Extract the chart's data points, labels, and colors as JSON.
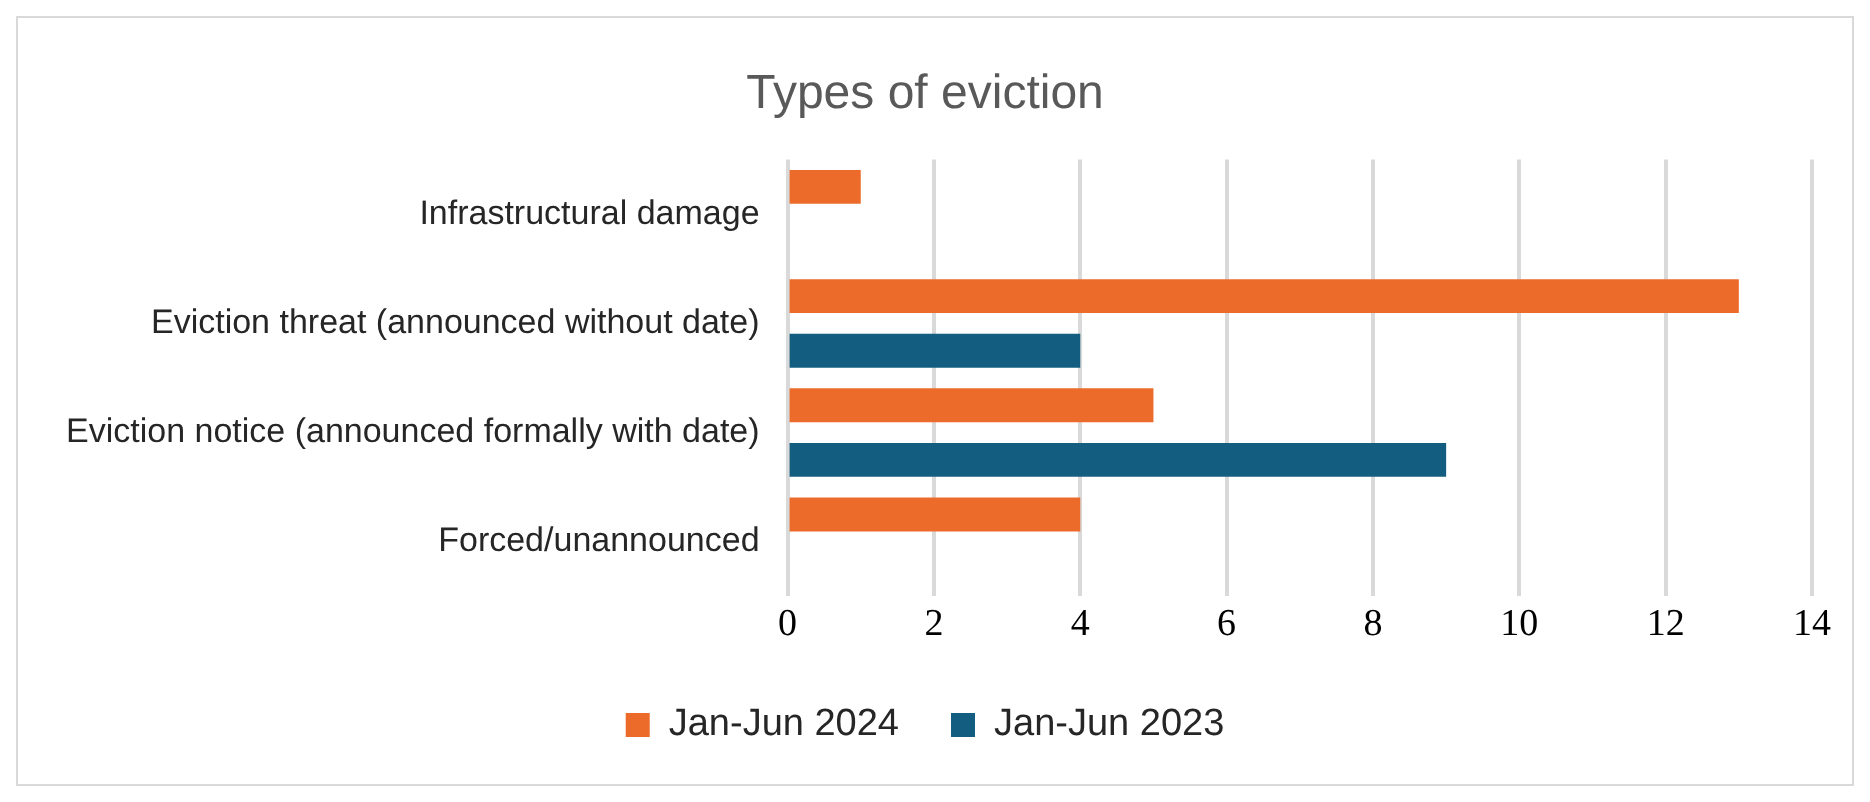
{
  "chart_data": {
    "type": "bar",
    "orientation": "horizontal",
    "title": "Types of eviction",
    "categories": [
      "Infrastructural damage",
      "Eviction threat (announced without date)",
      "Eviction notice (announced formally with date)",
      "Forced/unannounced"
    ],
    "series": [
      {
        "name": "Jan-Jun 2024",
        "color": "#ed6b2a",
        "values": [
          1,
          13,
          5,
          4
        ]
      },
      {
        "name": "Jan-Jun 2023",
        "color": "#135e80",
        "values": [
          null,
          4,
          9,
          null
        ]
      }
    ],
    "xlim": [
      0,
      14
    ],
    "xticks": [
      0,
      2,
      4,
      6,
      8,
      10,
      12,
      14
    ],
    "grid": "x",
    "legend": "bottom"
  }
}
